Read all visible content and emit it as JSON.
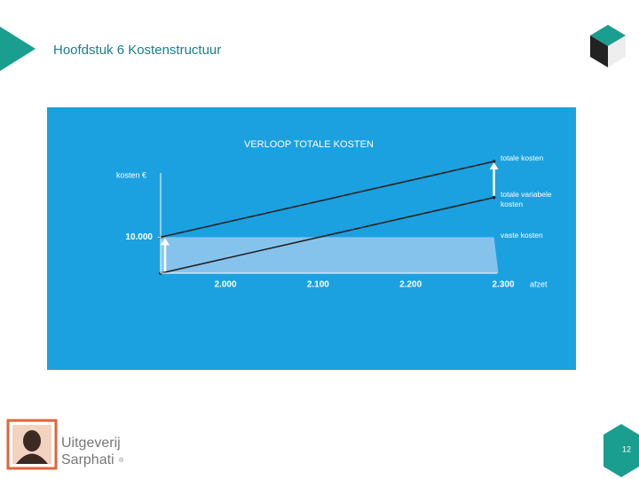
{
  "header": {
    "title": "Hoofdstuk 6 Kostenstructuur"
  },
  "chart_data": {
    "type": "line",
    "title": "VERLOOP TOTALE KOSTEN",
    "x_label": "afzet",
    "y_label": "kosten €",
    "x": [
      1930,
      2290
    ],
    "series": [
      {
        "name": "totale kosten",
        "color": "#1e1e1e",
        "values": [
          10000,
          31000
        ]
      },
      {
        "name": "totale variabele kosten",
        "color": "#1e1e1e",
        "values": [
          0,
          21000
        ]
      },
      {
        "name": "vaste kosten",
        "color": "#86c3ec",
        "values": [
          10000,
          10000
        ],
        "fill": true
      }
    ],
    "xlim": [
      1930,
      2300
    ],
    "xticks": [
      {
        "value": 2000,
        "label": "2.000"
      },
      {
        "value": 2100,
        "label": "2.100"
      },
      {
        "value": 2200,
        "label": "2.200"
      },
      {
        "value": 2300,
        "label": "2.300"
      }
    ],
    "ylim": [
      0,
      31000
    ],
    "yticks": [
      {
        "value": 10000,
        "label": "10.000"
      }
    ],
    "grid": false,
    "background": "#1ba1df"
  },
  "footer": {
    "publisher": [
      "Uitgeverij",
      "Sarphati"
    ],
    "trademark": "®",
    "page": "12"
  }
}
